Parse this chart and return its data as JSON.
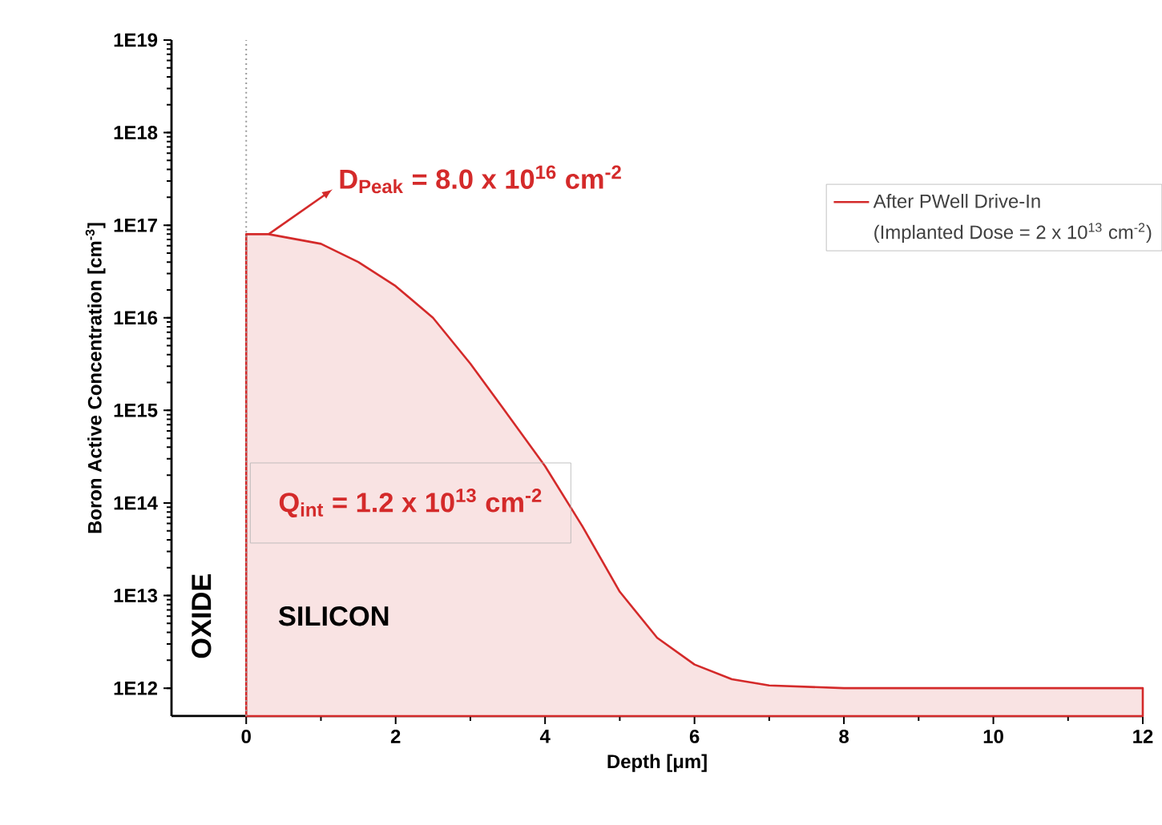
{
  "chart_data": {
    "type": "area",
    "xlabel": "Depth [μm]",
    "ylabel": "Boron Active Concentration [cm$^{-3}$]",
    "series": [
      {
        "name": "After PWell Drive-In",
        "color": "#d42a2a",
        "x": [
          0,
          0,
          0.3,
          1,
          1.5,
          2,
          2.5,
          3,
          3.5,
          4,
          4.5,
          5,
          5.5,
          6,
          6.5,
          7,
          8,
          10,
          12
        ],
        "values": [
          500000000000.0,
          8e+16,
          8e+16,
          6.3e+16,
          4e+16,
          2.2e+16,
          1e+16,
          3200000000000000.0,
          900000000000000.0,
          250000000000000.0,
          56000000000000.0,
          11000000000000.0,
          3500000000000.0,
          1800000000000.0,
          1250000000000.0,
          1070000000000.0,
          1000000000000.0,
          1000000000000.0,
          1000000000000.0
        ]
      }
    ],
    "xlim": [
      -1,
      12
    ],
    "xticks": [
      0,
      2,
      4,
      6,
      8,
      10,
      12
    ],
    "ylim": [
      500000000000.0,
      1e+19
    ],
    "yticks": [
      {
        "value": 1000000000000.0,
        "label": "1E12"
      },
      {
        "value": 10000000000000.0,
        "label": "1E13"
      },
      {
        "value": 100000000000000.0,
        "label": "1E14"
      },
      {
        "value": 1000000000000000.0,
        "label": "1E15"
      },
      {
        "value": 1e+16,
        "label": "1E16"
      },
      {
        "value": 1e+17,
        "label": "1E17"
      },
      {
        "value": 1e+18,
        "label": "1E18"
      },
      {
        "value": 1e+19,
        "label": "1E19"
      }
    ],
    "log": "y",
    "legend": "top right",
    "line_style": "solid",
    "ref_lines": [
      {
        "axis": "x",
        "value": 0,
        "color": "#999999",
        "line_style": "dotted"
      }
    ],
    "annotations": [
      {
        "text": "D$_{Peak}$ = 8.0 x 10$^{16}$ cm$^{-2}$",
        "x": 0.3,
        "y": 8e+16
      },
      "(Implanted Dose = 2 x 10$^{13}$ cm$^{-2}$)",
      "Q$_{int}$ = 1.2 x 10$^{13}$ cm$^{-2}$",
      "OXIDE",
      "SILICON"
    ]
  }
}
